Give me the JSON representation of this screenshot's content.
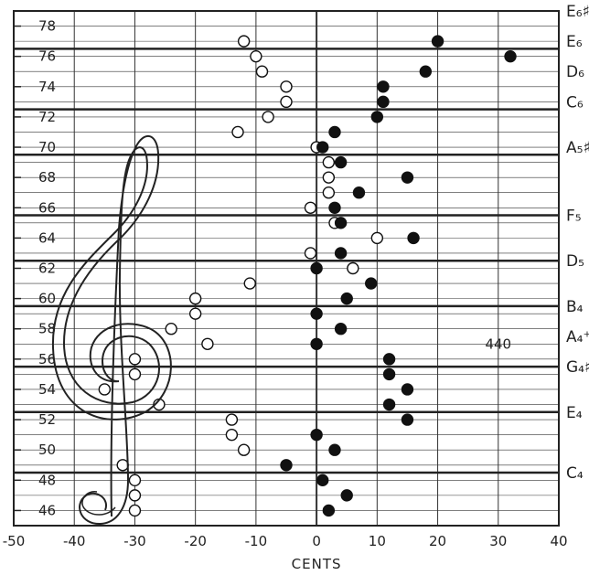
{
  "chart_data": {
    "type": "scatter",
    "title": "",
    "xlabel": "CENTS",
    "ylabel": "",
    "xlim": [
      -50,
      40
    ],
    "ylim": [
      45,
      79
    ],
    "x_ticks": [
      -50,
      -40,
      -30,
      -20,
      -10,
      0,
      10,
      20,
      30,
      40
    ],
    "y_ticks": [
      46,
      48,
      50,
      52,
      54,
      56,
      58,
      60,
      62,
      64,
      66,
      68,
      70,
      72,
      74,
      76,
      78
    ],
    "grid": true,
    "emphasized_lines": [
      48.5,
      52.5,
      55.5,
      59.5,
      62.5,
      65.5,
      69.5,
      72.5,
      76.5
    ],
    "note_labels": [
      {
        "y": 79,
        "text": "E₆♯"
      },
      {
        "y": 77,
        "text": "E₆"
      },
      {
        "y": 75,
        "text": "D₆"
      },
      {
        "y": 73,
        "text": "C₆"
      },
      {
        "y": 70,
        "text": "A₅♯"
      },
      {
        "y": 65.5,
        "text": "F₅"
      },
      {
        "y": 62.5,
        "text": "D₅"
      },
      {
        "y": 59.5,
        "text": "B₄"
      },
      {
        "y": 57.5,
        "text": "A₄⁺"
      },
      {
        "y": 55.5,
        "text": "G₄♯"
      },
      {
        "y": 52.5,
        "text": "E₄"
      },
      {
        "y": 48.5,
        "text": "C₄"
      }
    ],
    "annotations": [
      {
        "x": 30,
        "y": 57,
        "text": "440"
      }
    ],
    "series": [
      {
        "marker": "open",
        "points": [
          [
            -12,
            77
          ],
          [
            -10,
            76
          ],
          [
            -9,
            75
          ],
          [
            -5,
            74
          ],
          [
            -5,
            73
          ],
          [
            -8,
            72
          ],
          [
            -13,
            71
          ],
          [
            0,
            70
          ],
          [
            2,
            69
          ],
          [
            2,
            68
          ],
          [
            2,
            67
          ],
          [
            -1,
            66
          ],
          [
            3,
            65
          ],
          [
            10,
            64
          ],
          [
            -1,
            63
          ],
          [
            6,
            62
          ],
          [
            -11,
            61
          ],
          [
            -20,
            60
          ],
          [
            -20,
            59
          ],
          [
            -24,
            58
          ],
          [
            -18,
            57
          ],
          [
            -30,
            56
          ],
          [
            -30,
            55
          ],
          [
            -35,
            54
          ],
          [
            -26,
            53
          ],
          [
            -14,
            52
          ],
          [
            -14,
            51
          ],
          [
            -12,
            50
          ],
          [
            -32,
            49
          ],
          [
            -30,
            48
          ],
          [
            -30,
            47
          ],
          [
            -30,
            46
          ]
        ]
      },
      {
        "marker": "filled",
        "points": [
          [
            20,
            77
          ],
          [
            32,
            76
          ],
          [
            18,
            75
          ],
          [
            11,
            74
          ],
          [
            11,
            73
          ],
          [
            10,
            72
          ],
          [
            3,
            71
          ],
          [
            1,
            70
          ],
          [
            4,
            69
          ],
          [
            15,
            68
          ],
          [
            7,
            67
          ],
          [
            3,
            66
          ],
          [
            4,
            65
          ],
          [
            16,
            64
          ],
          [
            4,
            63
          ],
          [
            0,
            62
          ],
          [
            9,
            61
          ],
          [
            5,
            60
          ],
          [
            0,
            59
          ],
          [
            4,
            58
          ],
          [
            0,
            57
          ],
          [
            12,
            56
          ],
          [
            12,
            55
          ],
          [
            15,
            54
          ],
          [
            12,
            53
          ],
          [
            15,
            52
          ],
          [
            0,
            51
          ],
          [
            3,
            50
          ],
          [
            -5,
            49
          ],
          [
            1,
            48
          ],
          [
            5,
            47
          ],
          [
            2,
            46
          ]
        ]
      }
    ]
  }
}
